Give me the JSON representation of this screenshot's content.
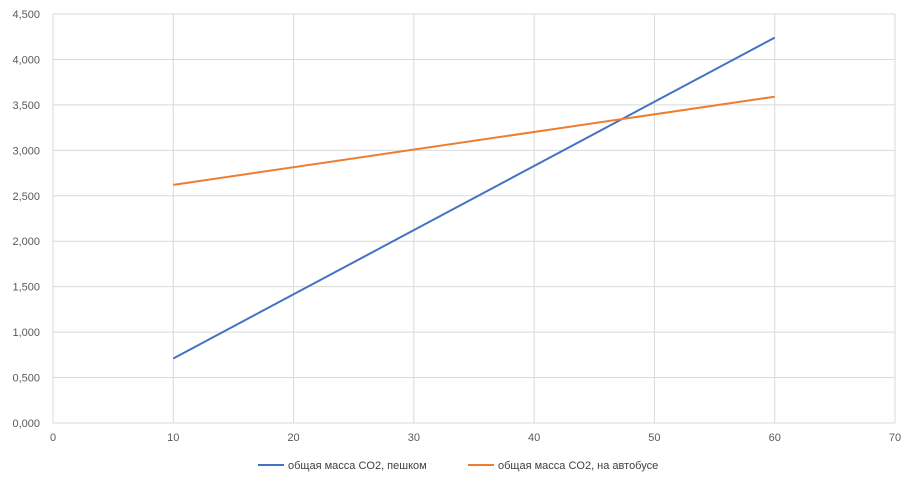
{
  "chart_data": {
    "type": "line",
    "title": "",
    "xlabel": "",
    "ylabel": "",
    "xlim": [
      0,
      70
    ],
    "ylim": [
      0,
      4.5
    ],
    "x_ticks": [
      "0",
      "10",
      "20",
      "30",
      "40",
      "50",
      "60",
      "70"
    ],
    "y_ticks": [
      "0,000",
      "0,500",
      "1,000",
      "1,500",
      "2,000",
      "2,500",
      "3,000",
      "3,500",
      "4,000",
      "4,500"
    ],
    "grid": true,
    "legend_position": "bottom",
    "series": [
      {
        "name": "общая масса CO2, пешком",
        "color": "#4472C4",
        "x": [
          10,
          60
        ],
        "y": [
          0.71,
          4.24
        ]
      },
      {
        "name": "общая масса CO2, на автобусе",
        "color": "#ED7D31",
        "x": [
          10,
          60
        ],
        "y": [
          2.62,
          3.59
        ]
      }
    ]
  }
}
